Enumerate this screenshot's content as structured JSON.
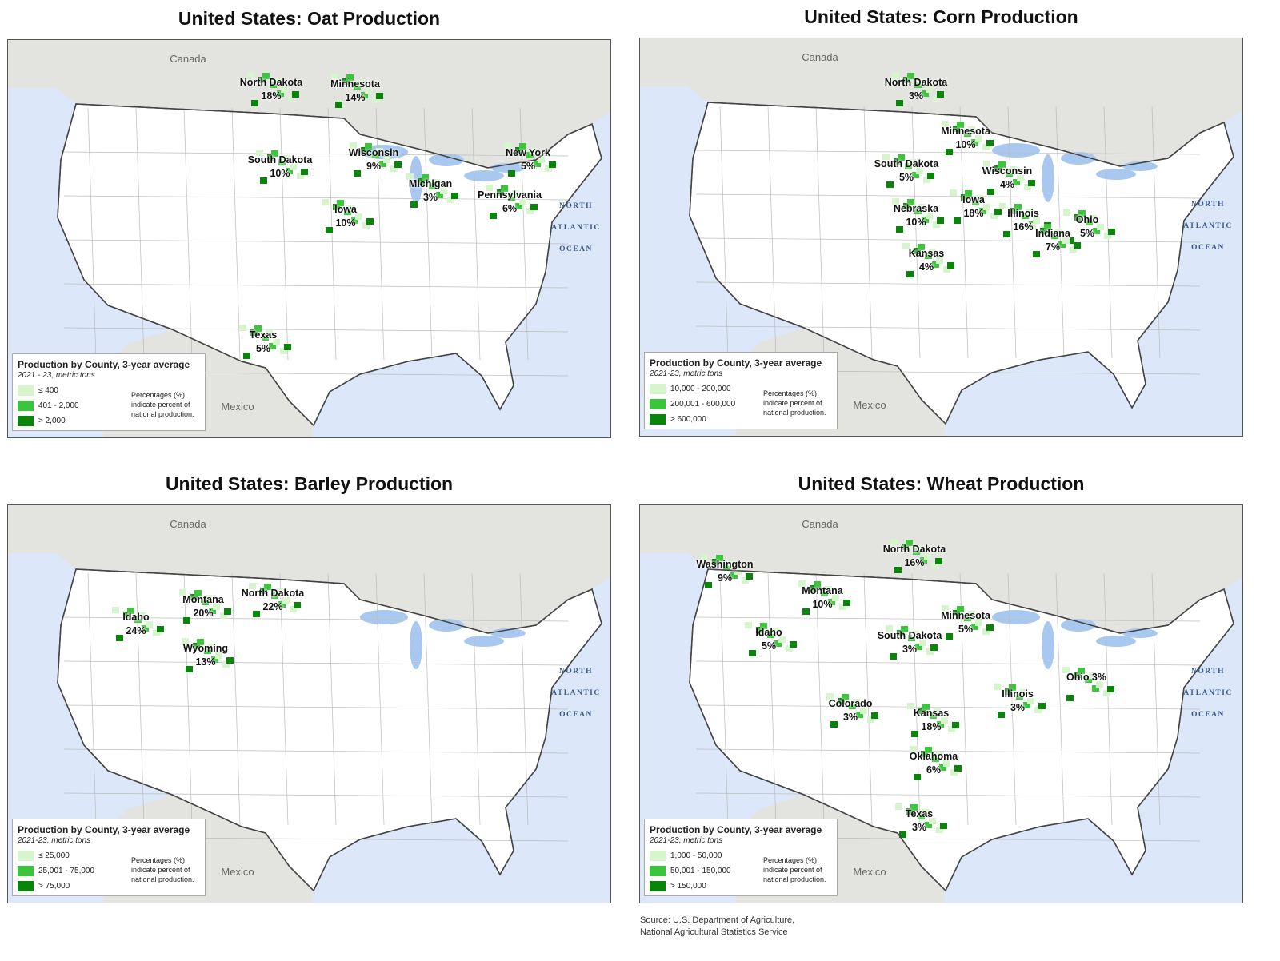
{
  "maps": [
    {
      "title": "United States: Oat Production",
      "canada": "Canada",
      "mexico": "Mexico",
      "ocean": [
        "NORTH",
        "ATLANTIC",
        "OCEAN"
      ],
      "legend": {
        "title": "Production by County, 3-year average",
        "subtitle": "2021 - 23, metric tons",
        "classes": [
          "≤ 400",
          "401 - 2,000",
          "> 2,000"
        ],
        "note": "Percentages (%) indicate percent of national production."
      },
      "labels": [
        {
          "name": "North Dakota",
          "pct": "18%"
        },
        {
          "name": "Minnesota",
          "pct": "14%"
        },
        {
          "name": "South Dakota",
          "pct": "10%"
        },
        {
          "name": "Wisconsin",
          "pct": "9%"
        },
        {
          "name": "Michigan",
          "pct": "3%"
        },
        {
          "name": "New York",
          "pct": "5%"
        },
        {
          "name": "Pennsylvania",
          "pct": "6%"
        },
        {
          "name": "Iowa",
          "pct": "10%"
        },
        {
          "name": "Texas",
          "pct": "5%"
        }
      ]
    },
    {
      "title": "United States: Corn Production",
      "canada": "Canada",
      "mexico": "Mexico",
      "ocean": [
        "NORTH",
        "ATLANTIC",
        "OCEAN"
      ],
      "legend": {
        "title": "Production by County, 3-year average",
        "subtitle": "2021-23, metric tons",
        "classes": [
          "10,000 - 200,000",
          "200,001 - 600,000",
          "> 600,000"
        ],
        "note": "Percentages (%) indicate percent of national production."
      },
      "labels": [
        {
          "name": "North Dakota",
          "pct": "3%"
        },
        {
          "name": "Minnesota",
          "pct": "10%"
        },
        {
          "name": "South Dakota",
          "pct": "5%"
        },
        {
          "name": "Wisconsin",
          "pct": "4%"
        },
        {
          "name": "Nebraska",
          "pct": "10%"
        },
        {
          "name": "Iowa",
          "pct": "18%"
        },
        {
          "name": "Illinois",
          "pct": "16%"
        },
        {
          "name": "Ohio",
          "pct": "5%"
        },
        {
          "name": "Indiana",
          "pct": "7%"
        },
        {
          "name": "Kansas",
          "pct": "4%"
        }
      ]
    },
    {
      "title": "United States: Barley Production",
      "canada": "Canada",
      "mexico": "Mexico",
      "ocean": [
        "NORTH",
        "ATLANTIC",
        "OCEAN"
      ],
      "legend": {
        "title": "Production by County, 3-year average",
        "subtitle": "2021-23, metric tons",
        "classes": [
          "≤ 25,000",
          "25,001 - 75,000",
          "> 75,000"
        ],
        "note": "Percentages (%) indicate percent of national production."
      },
      "labels": [
        {
          "name": "Montana",
          "pct": "20%"
        },
        {
          "name": "North Dakota",
          "pct": "22%"
        },
        {
          "name": "Idaho",
          "pct": "24%"
        },
        {
          "name": "Wyoming",
          "pct": "13%"
        }
      ]
    },
    {
      "title": "United States: Wheat Production",
      "canada": "Canada",
      "mexico": "Mexico",
      "ocean": [
        "NORTH",
        "ATLANTIC",
        "OCEAN"
      ],
      "legend": {
        "title": "Production by County, 3-year average",
        "subtitle": "2021-23, metric tons",
        "classes": [
          "1,000 - 50,000",
          "50,001 - 150,000",
          "> 150,000"
        ],
        "note": "Percentages (%) indicate percent of national production."
      },
      "labels": [
        {
          "name": "Washington",
          "pct": "9%"
        },
        {
          "name": "North Dakota",
          "pct": "16%"
        },
        {
          "name": "Montana",
          "pct": "10%"
        },
        {
          "name": "Minnesota",
          "pct": "5%"
        },
        {
          "name": "Idaho",
          "pct": "5%"
        },
        {
          "name": "South Dakota",
          "pct": "3%"
        },
        {
          "name": "Illinois",
          "pct": "3%"
        },
        {
          "name": "Ohio 3%"
        },
        {
          "name": "Colorado",
          "pct": "3%"
        },
        {
          "name": "Kansas",
          "pct": "18%"
        },
        {
          "name": "Oklahoma",
          "pct": "6%"
        },
        {
          "name": "Texas",
          "pct": "3%"
        }
      ]
    }
  ],
  "source": [
    "Source: U.S. Department of Agriculture,",
    "National Agricultural Statistics Service"
  ]
}
